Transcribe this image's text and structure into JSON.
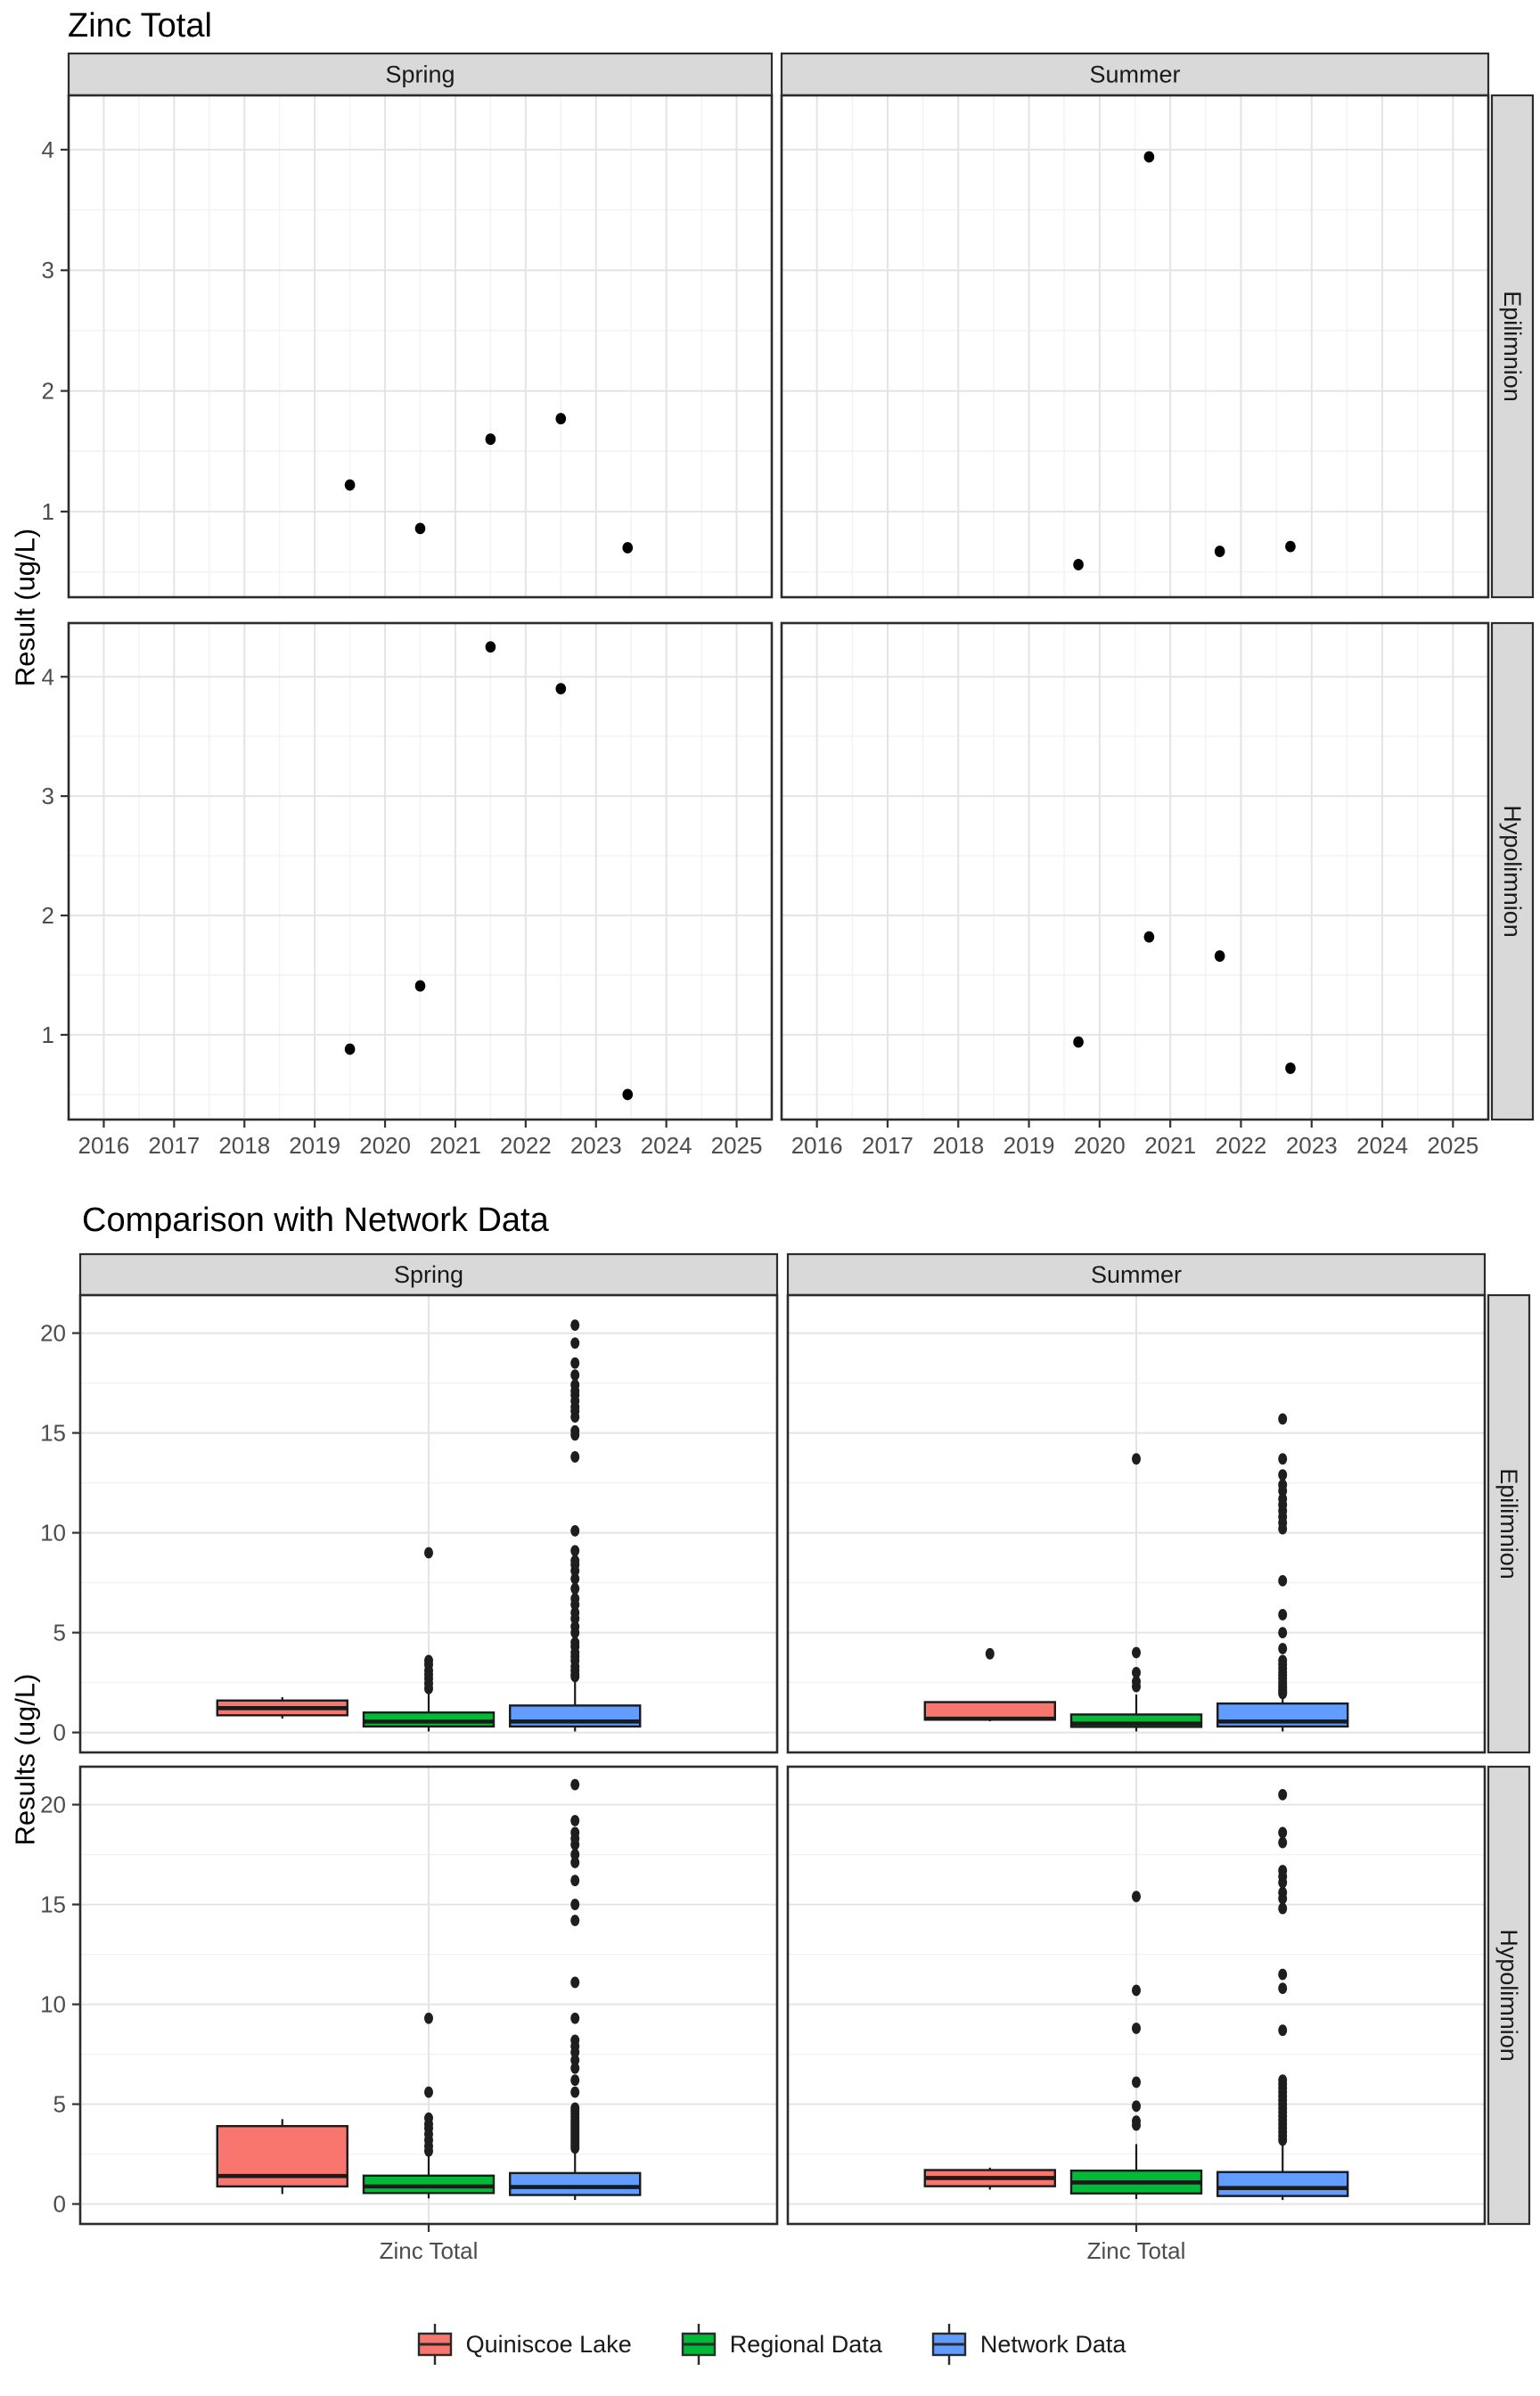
{
  "chart_data": [
    {
      "type": "scatter",
      "title": "Zinc Total",
      "ylabel": "Result (ug/L)",
      "xlabel": "",
      "facet_cols": [
        "Spring",
        "Summer"
      ],
      "facet_rows": [
        "Epilimnion",
        "Hypolimnion"
      ],
      "x_domain": [
        2015.5,
        2025.5
      ],
      "x_ticks": [
        2016,
        2017,
        2018,
        2019,
        2020,
        2021,
        2022,
        2023,
        2024,
        2025
      ],
      "y_domain": [
        0.29,
        4.45
      ],
      "y_ticks": [
        1,
        2,
        3,
        4
      ],
      "y_minor": [
        0.5,
        1.5,
        2.5,
        3.5
      ],
      "point_color": "#000000",
      "grid": true,
      "legend_position": "none",
      "panels": [
        {
          "col": "Spring",
          "row": "Epilimnion",
          "points": [
            [
              2019.5,
              1.22
            ],
            [
              2020.5,
              0.86
            ],
            [
              2021.5,
              1.6
            ],
            [
              2022.5,
              1.77
            ],
            [
              2023.45,
              0.7
            ]
          ]
        },
        {
          "col": "Summer",
          "row": "Epilimnion",
          "points": [
            [
              2019.7,
              0.56
            ],
            [
              2020.7,
              3.94
            ],
            [
              2021.7,
              0.67
            ],
            [
              2022.7,
              0.71
            ]
          ]
        },
        {
          "col": "Spring",
          "row": "Hypolimnion",
          "points": [
            [
              2019.5,
              0.88
            ],
            [
              2020.5,
              1.41
            ],
            [
              2021.5,
              4.25
            ],
            [
              2022.5,
              3.9
            ],
            [
              2023.45,
              0.5
            ]
          ]
        },
        {
          "col": "Summer",
          "row": "Hypolimnion",
          "points": [
            [
              2019.7,
              0.94
            ],
            [
              2020.7,
              1.82
            ],
            [
              2021.7,
              1.66
            ],
            [
              2022.7,
              0.72
            ]
          ]
        }
      ]
    },
    {
      "type": "boxplot",
      "title": "Comparison with Network Data",
      "ylabel": "Results (ug/L)",
      "x_category": "Zinc Total",
      "facet_cols": [
        "Spring",
        "Summer"
      ],
      "facet_rows": [
        "Epilimnion",
        "Hypolimnion"
      ],
      "y_domain": [
        -1.0,
        21.9
      ],
      "y_ticks": [
        0,
        5,
        10,
        15,
        20
      ],
      "y_minor": [
        2.5,
        7.5,
        12.5,
        17.5
      ],
      "legend": {
        "position": "bottom",
        "items": [
          {
            "label": "Quiniscoe Lake",
            "color": "#F8766D"
          },
          {
            "label": "Regional Data",
            "color": "#00BA38"
          },
          {
            "label": "Network Data",
            "color": "#619CFF"
          }
        ]
      },
      "panels": [
        {
          "col": "Spring",
          "row": "Epilimnion",
          "boxes": [
            {
              "series": "Quiniscoe Lake",
              "whislo": 0.7,
              "q1": 0.86,
              "med": 1.22,
              "q3": 1.6,
              "whishi": 1.77,
              "outliers": []
            },
            {
              "series": "Regional Data",
              "whislo": 0.05,
              "q1": 0.3,
              "med": 0.55,
              "q3": 1.0,
              "whishi": 2.0,
              "outliers": [
                2.2,
                2.45,
                2.7,
                2.9,
                3.1,
                3.4,
                3.6,
                9.0
              ]
            },
            {
              "series": "Network Data",
              "whislo": 0.05,
              "q1": 0.3,
              "med": 0.55,
              "q3": 1.35,
              "whishi": 2.55,
              "outliers": [
                2.8,
                2.9,
                3.1,
                3.3,
                3.6,
                3.8,
                4.0,
                4.3,
                4.5,
                5.0,
                5.3,
                5.7,
                6.0,
                6.4,
                6.7,
                7.2,
                7.7,
                8.1,
                8.4,
                8.6,
                9.1,
                10.1,
                13.8,
                14.9,
                15.1,
                15.8,
                16.1,
                16.3,
                16.6,
                16.9,
                17.1,
                17.4,
                17.9,
                18.5,
                19.5,
                20.4
              ]
            }
          ]
        },
        {
          "col": "Summer",
          "row": "Epilimnion",
          "boxes": [
            {
              "series": "Quiniscoe Lake",
              "whislo": 0.56,
              "q1": 0.64,
              "med": 0.69,
              "q3": 1.52,
              "whishi": 1.52,
              "outliers": [
                3.94
              ]
            },
            {
              "series": "Regional Data",
              "whislo": 0.05,
              "q1": 0.28,
              "med": 0.45,
              "q3": 0.9,
              "whishi": 1.9,
              "outliers": [
                2.3,
                2.55,
                3.0,
                4.0,
                13.7
              ]
            },
            {
              "series": "Network Data",
              "whislo": 0.05,
              "q1": 0.3,
              "med": 0.55,
              "q3": 1.45,
              "whishi": 2.9,
              "outliers": [
                1.95,
                2.0,
                2.1,
                2.2,
                2.3,
                2.4,
                2.55,
                2.7,
                2.85,
                3.0,
                3.2,
                3.4,
                3.6,
                4.2,
                5.0,
                5.9,
                7.6,
                10.2,
                10.5,
                10.8,
                11.1,
                11.4,
                11.7,
                12.1,
                12.4,
                12.9,
                13.7,
                15.7
              ]
            }
          ]
        },
        {
          "col": "Spring",
          "row": "Hypolimnion",
          "boxes": [
            {
              "series": "Quiniscoe Lake",
              "whislo": 0.5,
              "q1": 0.88,
              "med": 1.4,
              "q3": 3.9,
              "whishi": 4.25,
              "outliers": []
            },
            {
              "series": "Regional Data",
              "whislo": 0.28,
              "q1": 0.55,
              "med": 0.88,
              "q3": 1.42,
              "whishi": 2.5,
              "outliers": [
                2.65,
                2.9,
                3.2,
                3.5,
                3.8,
                4.0,
                4.3,
                5.6,
                9.3
              ]
            },
            {
              "series": "Network Data",
              "whislo": 0.2,
              "q1": 0.45,
              "med": 0.85,
              "q3": 1.55,
              "whishi": 2.7,
              "outliers": [
                2.8,
                2.9,
                3.0,
                3.1,
                3.2,
                3.3,
                3.4,
                3.5,
                3.6,
                3.7,
                3.8,
                3.9,
                4.0,
                4.1,
                4.2,
                4.35,
                4.5,
                4.65,
                4.8,
                5.6,
                6.2,
                6.8,
                7.2,
                7.6,
                7.9,
                8.2,
                9.3,
                11.1,
                14.2,
                15.0,
                16.2,
                17.1,
                17.5,
                18.0,
                18.3,
                18.6,
                19.2,
                21.0
              ]
            }
          ]
        },
        {
          "col": "Summer",
          "row": "Hypolimnion",
          "boxes": [
            {
              "series": "Quiniscoe Lake",
              "whislo": 0.72,
              "q1": 0.89,
              "med": 1.3,
              "q3": 1.7,
              "whishi": 1.82,
              "outliers": []
            },
            {
              "series": "Regional Data",
              "whislo": 0.25,
              "q1": 0.53,
              "med": 1.08,
              "q3": 1.67,
              "whishi": 3.0,
              "outliers": [
                3.95,
                4.15,
                4.9,
                6.1,
                8.8,
                10.7,
                15.4
              ]
            },
            {
              "series": "Network Data",
              "whislo": 0.2,
              "q1": 0.4,
              "med": 0.8,
              "q3": 1.6,
              "whishi": 3.0,
              "outliers": [
                3.2,
                3.4,
                3.6,
                3.8,
                4.0,
                4.2,
                4.4,
                4.6,
                4.8,
                5.0,
                5.2,
                5.4,
                5.6,
                5.8,
                6.0,
                6.2,
                8.7,
                10.8,
                11.5,
                14.8,
                15.3,
                15.6,
                16.1,
                16.4,
                16.7,
                18.1,
                18.6,
                20.5
              ]
            }
          ]
        }
      ]
    }
  ]
}
